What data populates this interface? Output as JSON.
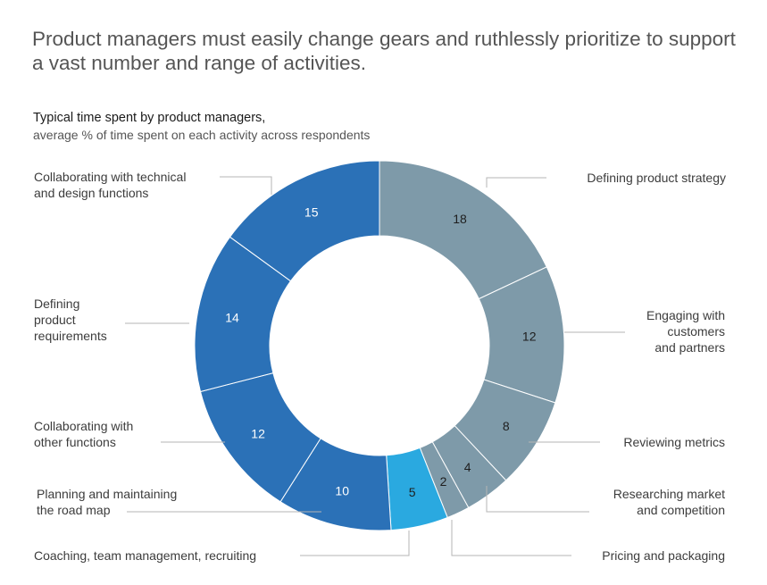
{
  "header": {
    "headline": "Product managers must easily change gears and ruthlessly prioritize to support a vast number and range of activities.",
    "title": "Typical time spent by product managers,",
    "subtitle": "average % of time spent on each activity across respondents"
  },
  "chart_data": {
    "type": "pie",
    "variant": "donut",
    "title": "Typical time spent by product managers,",
    "subtitle": "average % of time spent on each activity across respondents",
    "unit": "%",
    "slices": [
      {
        "label": "Defining product strategy",
        "value": 18,
        "color": "#7e9aa9"
      },
      {
        "label": "Engaging with customers and partners",
        "value": 12,
        "color": "#7e9aa9"
      },
      {
        "label": "Reviewing metrics",
        "value": 8,
        "color": "#7e9aa9"
      },
      {
        "label": "Researching market and competition",
        "value": 4,
        "color": "#7e9aa9"
      },
      {
        "label": "Pricing and packaging",
        "value": 2,
        "color": "#7e9aa9"
      },
      {
        "label": "Coaching, team management, recruiting",
        "value": 5,
        "color": "#2aa9e0"
      },
      {
        "label": "Planning and maintaining the road map",
        "value": 10,
        "color": "#2b71b7"
      },
      {
        "label": "Collaborating with other functions",
        "value": 12,
        "color": "#2b71b7"
      },
      {
        "label": "Defining product requirements",
        "value": 14,
        "color": "#2b71b7"
      },
      {
        "label": "Collaborating with technical and design functions",
        "value": 15,
        "color": "#2b71b7"
      }
    ],
    "legend": "none (direct labels with leader lines)"
  }
}
